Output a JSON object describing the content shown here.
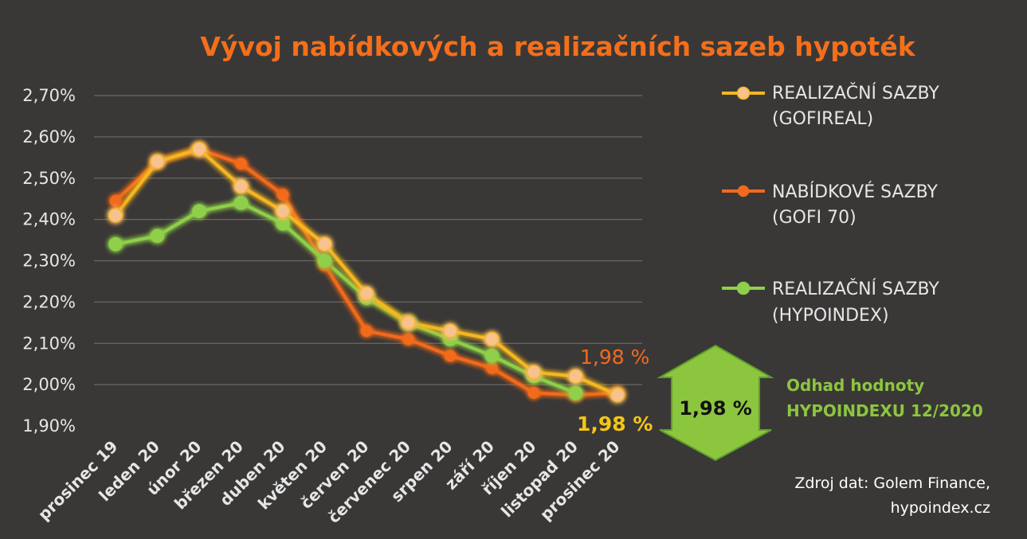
{
  "colors": {
    "background": "#3a3837",
    "title": "#f46f1b",
    "axis_text": "#e6e6e6",
    "gridline": "#6a6866"
  },
  "chart_data": {
    "type": "line",
    "title": "Vývoj nabídkových a realizačních sazeb hypoték",
    "categories": [
      "prosinec 19",
      "leden 20",
      "únor 20",
      "březen 20",
      "duben 20",
      "květen 20",
      "červen 20",
      "červenec 20",
      "srpen 20",
      "září 20",
      "říjen 20",
      "listopad 20",
      "prosinec 20"
    ],
    "y_ticks": [
      "1,90%",
      "2,00%",
      "2,10%",
      "2,20%",
      "2,30%",
      "2,40%",
      "2,50%",
      "2,60%",
      "2,70%"
    ],
    "ylim": [
      1.9,
      2.7
    ],
    "grid": true,
    "legend_position": "right",
    "series": [
      {
        "key": "gofi70",
        "name_line1": "NABÍDKOVÉ SAZBY",
        "name_line2": "(GOFI 70)",
        "color": "#f26a1e",
        "values": [
          2.445,
          2.54,
          2.57,
          2.535,
          2.46,
          2.29,
          2.13,
          2.11,
          2.07,
          2.04,
          1.98,
          1.975,
          1.98
        ]
      },
      {
        "key": "hypoindex",
        "name_line1": "REALIZAČNÍ SAZBY",
        "name_line2": "(HYPOINDEX)",
        "color": "#8fcf4a",
        "values": [
          2.34,
          2.36,
          2.42,
          2.44,
          2.39,
          2.3,
          2.21,
          2.15,
          2.11,
          2.07,
          2.02,
          1.98,
          null
        ]
      },
      {
        "key": "gofireal",
        "name_line1": "REALIZAČNÍ SAZBY",
        "name_line2": "(GOFIREAL)",
        "color": "#f5b621",
        "marker_fill": "#f7c28e",
        "values": [
          2.41,
          2.54,
          2.57,
          2.48,
          2.42,
          2.34,
          2.22,
          2.15,
          2.13,
          2.11,
          2.03,
          2.02,
          1.975
        ]
      }
    ],
    "annotations": [
      {
        "text": "1,98 %",
        "color": "#f26a1e"
      },
      {
        "text": "1,98 %",
        "color": "#f5c518"
      }
    ]
  },
  "estimate": {
    "arrow_value": "1,98 %",
    "arrow_color": "#8cc63f",
    "arrow_border": "#5f9e2a",
    "note_line1": "Odhad hodnoty",
    "note_line2": "HYPOINDEXU 12/2020",
    "note_color": "#8cc63f"
  },
  "source": {
    "line1": "Zdroj dat: Golem Finance,",
    "line2": "hypoindex.cz",
    "color": "#ffffff"
  }
}
